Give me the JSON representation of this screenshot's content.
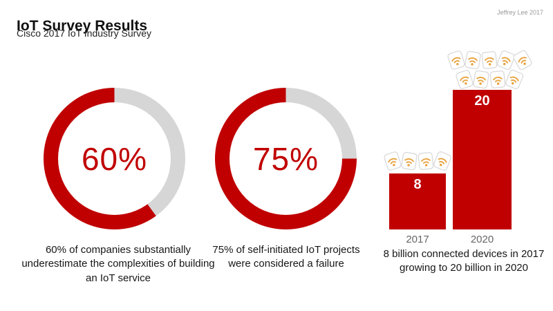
{
  "header": {
    "title": "IoT Survey Results",
    "subtitle": "Cisco 2017 IoT Industry Survey",
    "credit": "Jeffrey Lee 2017"
  },
  "colors": {
    "accent_red": "#c00000",
    "track_gray": "#d6d6d6",
    "wifi_orange": "#e8a23d"
  },
  "chart_data": [
    {
      "type": "donut",
      "value": 60,
      "label": "60%",
      "caption": "60% of companies substantially underestimate the complexities of building an IoT service"
    },
    {
      "type": "donut",
      "value": 75,
      "label": "75%",
      "caption": "75% of self-initiated IoT projects were considered a failure"
    },
    {
      "type": "bar",
      "title": "",
      "categories": [
        "2017",
        "2020"
      ],
      "values": [
        8,
        20
      ],
      "value_labels": [
        "8",
        "20"
      ],
      "ylim": [
        0,
        20
      ],
      "unit": "billion connected devices",
      "icon": "wifi-device-icon",
      "icon_counts": [
        4,
        9
      ],
      "caption": "8 billion connected devices in 2017 growing to 20 billion in 2020"
    }
  ]
}
